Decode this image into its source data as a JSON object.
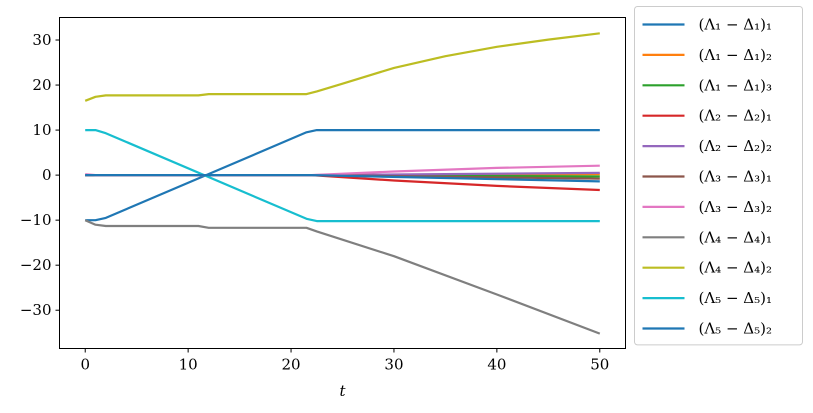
{
  "chart_data": {
    "type": "line",
    "xlabel": "t",
    "ylabel": "",
    "title": "",
    "xlim": [
      -2.5,
      52.5
    ],
    "ylim": [
      -38.5,
      35
    ],
    "xticks": [
      0,
      10,
      20,
      30,
      40,
      50
    ],
    "yticks": [
      -30,
      -20,
      -10,
      0,
      10,
      20,
      30
    ],
    "xtick_labels": [
      "0",
      "10",
      "20",
      "30",
      "40",
      "50"
    ],
    "ytick_labels": [
      "−30",
      "−20",
      "−10",
      "0",
      "10",
      "20",
      "30"
    ],
    "grid": false,
    "legend_position": "outside-right",
    "series": [
      {
        "name": "(Λ₁ − Δ₁)₁",
        "color": "#1f77b4",
        "x": [
          0,
          1,
          2,
          21.5,
          22.5,
          50
        ],
        "y": [
          -10,
          -10,
          -9.5,
          9.5,
          10,
          10
        ]
      },
      {
        "name": "(Λ₁ − Δ₁)₂",
        "color": "#ff7f0e",
        "x": [
          0,
          22,
          50
        ],
        "y": [
          0,
          0,
          0.2
        ]
      },
      {
        "name": "(Λ₁ − Δ₁)₃",
        "color": "#2ca02c",
        "x": [
          0,
          22,
          50
        ],
        "y": [
          0,
          0,
          -0.3
        ]
      },
      {
        "name": "(Λ₂ − Δ₂)₁",
        "color": "#d62728",
        "x": [
          0,
          22,
          30,
          40,
          50
        ],
        "y": [
          0,
          0,
          -1.2,
          -2.4,
          -3.3
        ]
      },
      {
        "name": "(Λ₂ − Δ₂)₂",
        "color": "#9467bd",
        "x": [
          0,
          22,
          50
        ],
        "y": [
          0,
          0,
          0.5
        ]
      },
      {
        "name": "(Λ₃ − Δ₃)₁",
        "color": "#8c564b",
        "x": [
          0,
          22,
          50
        ],
        "y": [
          0,
          0,
          -0.8
        ]
      },
      {
        "name": "(Λ₃ − Δ₃)₂",
        "color": "#e377c2",
        "x": [
          0,
          1,
          22,
          30,
          40,
          50
        ],
        "y": [
          0.2,
          0,
          0,
          0.8,
          1.6,
          2.1
        ]
      },
      {
        "name": "(Λ₄ − Δ₄)₁",
        "color": "#7f7f7f",
        "x": [
          0,
          1,
          2,
          11,
          12,
          21.5,
          22.5,
          30,
          40,
          50
        ],
        "y": [
          -10,
          -11,
          -11.3,
          -11.3,
          -11.7,
          -11.7,
          -12.5,
          -18,
          -26.5,
          -35.2
        ]
      },
      {
        "name": "(Λ₄ − Δ₄)₂",
        "color": "#bcbd22",
        "x": [
          0,
          1,
          2,
          11,
          12,
          21.5,
          22.5,
          25,
          30,
          35,
          40,
          45,
          50
        ],
        "y": [
          16.5,
          17.4,
          17.7,
          17.7,
          18.0,
          18.0,
          18.6,
          20.3,
          23.8,
          26.4,
          28.5,
          30.1,
          31.5
        ]
      },
      {
        "name": "(Λ₅ − Δ₅)₁",
        "color": "#17becf",
        "x": [
          0,
          1,
          2,
          21.5,
          22.5,
          50
        ],
        "y": [
          10,
          10,
          9.3,
          -9.7,
          -10.2,
          -10.2
        ]
      },
      {
        "name": "(Λ₅ − Δ₅)₂",
        "color": "#1f77b4",
        "x": [
          0,
          22,
          50
        ],
        "y": [
          0,
          0,
          -1.4
        ]
      }
    ]
  }
}
